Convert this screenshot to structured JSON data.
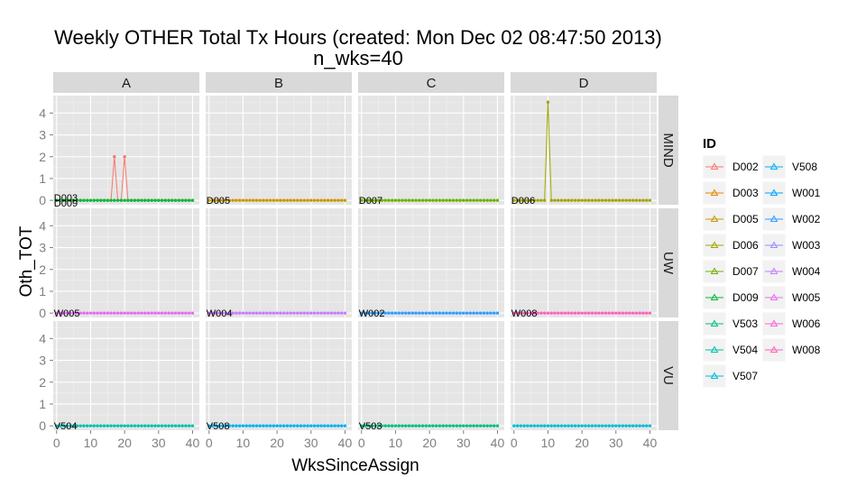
{
  "chart_data": {
    "type": "line",
    "title_line1": "Weekly OTHER Total Tx Hours  (created: Mon Dec 02 08:47:50 2013)",
    "title_line2": "n_wks=40",
    "xlabel": "WksSinceAssign",
    "ylabel": "Oth_TOT",
    "xlim": [
      -1,
      42
    ],
    "ylim": [
      -0.2,
      4.8
    ],
    "x_ticks": [
      0,
      10,
      20,
      30,
      40
    ],
    "y_ticks": [
      0,
      1,
      2,
      3,
      4
    ],
    "columns": [
      "A",
      "B",
      "C",
      "D"
    ],
    "rows": [
      "MIND",
      "UW",
      "VU"
    ],
    "grid": true,
    "legend": {
      "title": "ID",
      "position": "right"
    },
    "colors": {
      "D002": "#F8766D",
      "D003": "#E58700",
      "D005": "#C99800",
      "D006": "#A3A500",
      "D007": "#6BB100",
      "D009": "#00BA38",
      "V503": "#00BF7D",
      "V504": "#00C0AF",
      "V507": "#00BCD8",
      "V508": "#00B0F6",
      "W001": "#00A5FF",
      "W002": "#2C9FFF",
      "W003": "#9590FF",
      "W004": "#C77CFF",
      "W005": "#E76BF3",
      "W006": "#FA62DB",
      "W008": "#FF62BC"
    },
    "legend_items": [
      "D002",
      "D003",
      "D005",
      "D006",
      "D007",
      "D009",
      "V503",
      "V504",
      "V507",
      "V508",
      "W001",
      "W002",
      "W003",
      "W004",
      "W005",
      "W006",
      "W008"
    ],
    "series": [
      {
        "name": "D002",
        "panel": "A|MIND",
        "x_range": [
          0,
          40
        ],
        "peaks": {
          "17": 2,
          "20": 2
        }
      },
      {
        "name": "D009",
        "panel": "A|MIND",
        "x_range": [
          0,
          40
        ],
        "peaks": {}
      },
      {
        "name": "D005",
        "panel": "B|MIND",
        "x_range": [
          0,
          40
        ],
        "peaks": {}
      },
      {
        "name": "D007",
        "panel": "C|MIND",
        "x_range": [
          0,
          40
        ],
        "peaks": {}
      },
      {
        "name": "D006",
        "panel": "D|MIND",
        "x_range": [
          0,
          40
        ],
        "peaks": {
          "10": 4.5
        }
      },
      {
        "name": "W005",
        "panel": "A|UW",
        "x_range": [
          0,
          40
        ],
        "peaks": {}
      },
      {
        "name": "W004",
        "panel": "B|UW",
        "x_range": [
          0,
          40
        ],
        "peaks": {}
      },
      {
        "name": "W002",
        "panel": "C|UW",
        "x_range": [
          0,
          40
        ],
        "peaks": {}
      },
      {
        "name": "W008",
        "panel": "D|UW",
        "x_range": [
          0,
          40
        ],
        "peaks": {}
      },
      {
        "name": "V504",
        "panel": "A|VU",
        "x_range": [
          0,
          40
        ],
        "peaks": {}
      },
      {
        "name": "V508",
        "panel": "B|VU",
        "x_range": [
          0,
          40
        ],
        "peaks": {}
      },
      {
        "name": "V503",
        "panel": "C|VU",
        "x_range": [
          0,
          40
        ],
        "peaks": {}
      },
      {
        "name": "V507",
        "panel": "D|VU",
        "x_range": [
          0,
          40
        ],
        "peaks": {}
      }
    ],
    "end_labels": [
      {
        "panel": "A|MIND",
        "text": "D003"
      },
      {
        "panel": "A|MIND",
        "text": "D009"
      },
      {
        "panel": "B|MIND",
        "text": "D005"
      },
      {
        "panel": "C|MIND",
        "text": "D007"
      },
      {
        "panel": "D|MIND",
        "text": "D006"
      },
      {
        "panel": "A|UW",
        "text": "W005"
      },
      {
        "panel": "B|UW",
        "text": "W004"
      },
      {
        "panel": "C|UW",
        "text": "W002"
      },
      {
        "panel": "D|UW",
        "text": "W008"
      },
      {
        "panel": "A|VU",
        "text": "V504"
      },
      {
        "panel": "B|VU",
        "text": "V508"
      },
      {
        "panel": "C|VU",
        "text": "V503"
      }
    ]
  }
}
